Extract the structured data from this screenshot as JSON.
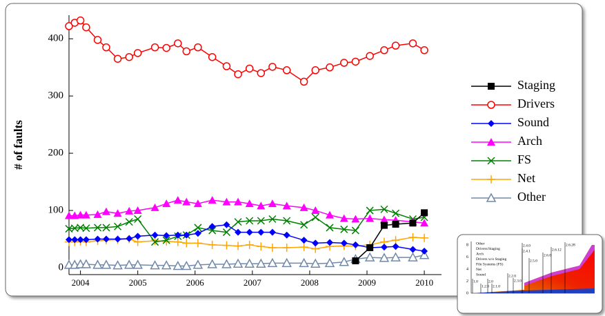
{
  "chart_data": {
    "type": "line",
    "ylabel": "# of faults",
    "x": [
      2003.8,
      2003.9,
      2004.0,
      2004.1,
      2004.3,
      2004.45,
      2004.65,
      2004.85,
      2005.0,
      2005.3,
      2005.5,
      2005.7,
      2005.85,
      2006.05,
      2006.3,
      2006.55,
      2006.75,
      2006.95,
      2007.15,
      2007.35,
      2007.6,
      2007.9,
      2008.1,
      2008.35,
      2008.6,
      2008.8,
      2009.05,
      2009.3,
      2009.5,
      2009.8,
      2010.0
    ],
    "xlim": [
      2003.8,
      2010.3
    ],
    "xticks": [
      2004,
      2005,
      2006,
      2007,
      2008,
      2009,
      2010
    ],
    "ylim": [
      0,
      440
    ],
    "yticks": [
      0,
      100,
      200,
      300,
      400
    ],
    "legend": "right",
    "series": [
      {
        "name": "Staging",
        "color": "#000000",
        "marker": "square",
        "values": [
          null,
          null,
          null,
          null,
          null,
          null,
          null,
          null,
          null,
          null,
          null,
          null,
          null,
          null,
          null,
          null,
          null,
          null,
          null,
          null,
          null,
          null,
          null,
          null,
          null,
          12,
          35,
          74,
          76,
          78,
          96
        ]
      },
      {
        "name": "Drivers",
        "color": "#ff0000",
        "marker": "circle",
        "values": [
          422,
          428,
          432,
          420,
          398,
          385,
          365,
          368,
          375,
          385,
          384,
          392,
          378,
          385,
          368,
          352,
          338,
          348,
          340,
          351,
          345,
          325,
          345,
          350,
          358,
          360,
          370,
          380,
          388,
          392,
          380
        ]
      },
      {
        "name": "Sound",
        "color": "#0000ff",
        "marker": "diamond",
        "values": [
          49,
          49,
          49,
          49,
          50,
          50,
          50,
          51,
          55,
          57,
          56,
          57,
          57,
          60,
          72,
          75,
          62,
          62,
          62,
          62,
          57,
          48,
          43,
          44,
          43,
          40,
          35,
          36,
          37,
          32,
          29
        ]
      },
      {
        "name": "Arch",
        "color": "#ff00ff",
        "marker": "triangle",
        "values": [
          91,
          91,
          92,
          92,
          93,
          98,
          95,
          99,
          100,
          105,
          112,
          118,
          115,
          112,
          118,
          115,
          115,
          112,
          108,
          112,
          108,
          105,
          100,
          92,
          86,
          85,
          86,
          84,
          83,
          80,
          78
        ]
      },
      {
        "name": "FS",
        "color": "#008000",
        "marker": "x",
        "values": [
          68,
          69,
          70,
          69,
          70,
          70,
          72,
          80,
          85,
          45,
          48,
          55,
          57,
          70,
          65,
          62,
          80,
          82,
          82,
          85,
          82,
          75,
          88,
          70,
          67,
          65,
          100,
          102,
          95,
          85,
          88
        ]
      },
      {
        "name": "Net",
        "color": "#ffa500",
        "marker": "plus",
        "values": [
          45,
          45,
          46,
          45,
          47,
          48,
          49,
          50,
          45,
          47,
          46,
          45,
          43,
          43,
          40,
          39,
          38,
          40,
          37,
          35,
          35,
          36,
          33,
          37,
          38,
          38,
          40,
          45,
          48,
          53,
          52
        ]
      },
      {
        "name": "Other",
        "color": "#7088a8",
        "marker": "open-triangle",
        "values": [
          5,
          5,
          6,
          6,
          5,
          5,
          4,
          5,
          5,
          4,
          4,
          3,
          3,
          5,
          6,
          6,
          7,
          7,
          7,
          8,
          8,
          8,
          7,
          8,
          10,
          15,
          18,
          17,
          18,
          18,
          22
        ]
      }
    ]
  },
  "inset": {
    "legend": [
      "Other",
      "Drivers/Staging",
      "Arch",
      "Drivers w/o Staging",
      "File Systems (FS)",
      "Net",
      "Sound"
    ],
    "yticks": [
      "0",
      "2",
      "4",
      "6",
      "8"
    ],
    "versions": [
      "1.0",
      "1.2.0",
      "2.0",
      "2.1.0",
      "2.2.0",
      "2.3.0",
      "2.4.0",
      "2.4.1",
      "2.5.0",
      "2.6.0",
      "2.6.12",
      "2.6.28"
    ]
  }
}
